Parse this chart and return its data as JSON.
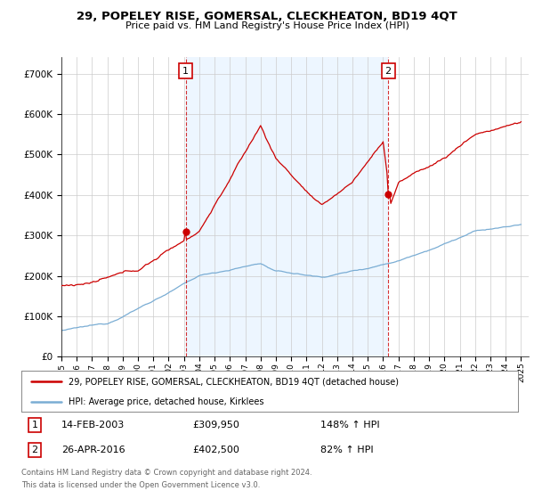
{
  "title": "29, POPELEY RISE, GOMERSAL, CLECKHEATON, BD19 4QT",
  "subtitle": "Price paid vs. HM Land Registry's House Price Index (HPI)",
  "background_color": "#ffffff",
  "plot_bg_color": "#ffffff",
  "grid_color": "#cccccc",
  "line1_color": "#cc0000",
  "line2_color": "#7aadd4",
  "shade_color": "#ddeeff",
  "sale1_year": 2003.12,
  "sale1_price": 309950,
  "sale2_year": 2016.33,
  "sale2_price": 402500,
  "yticks": [
    0,
    100000,
    200000,
    300000,
    400000,
    500000,
    600000,
    700000
  ],
  "ylim": [
    0,
    740000
  ],
  "xlim_start": 1995,
  "xlim_end": 2025.5,
  "footer_line1": "Contains HM Land Registry data © Crown copyright and database right 2024.",
  "footer_line2": "This data is licensed under the Open Government Licence v3.0.",
  "legend_line1": "29, POPELEY RISE, GOMERSAL, CLECKHEATON, BD19 4QT (detached house)",
  "legend_line2": "HPI: Average price, detached house, Kirklees",
  "table_row1": [
    "1",
    "14-FEB-2003",
    "£309,950",
    "148% ↑ HPI"
  ],
  "table_row2": [
    "2",
    "26-APR-2016",
    "£402,500",
    "82% ↑ HPI"
  ]
}
